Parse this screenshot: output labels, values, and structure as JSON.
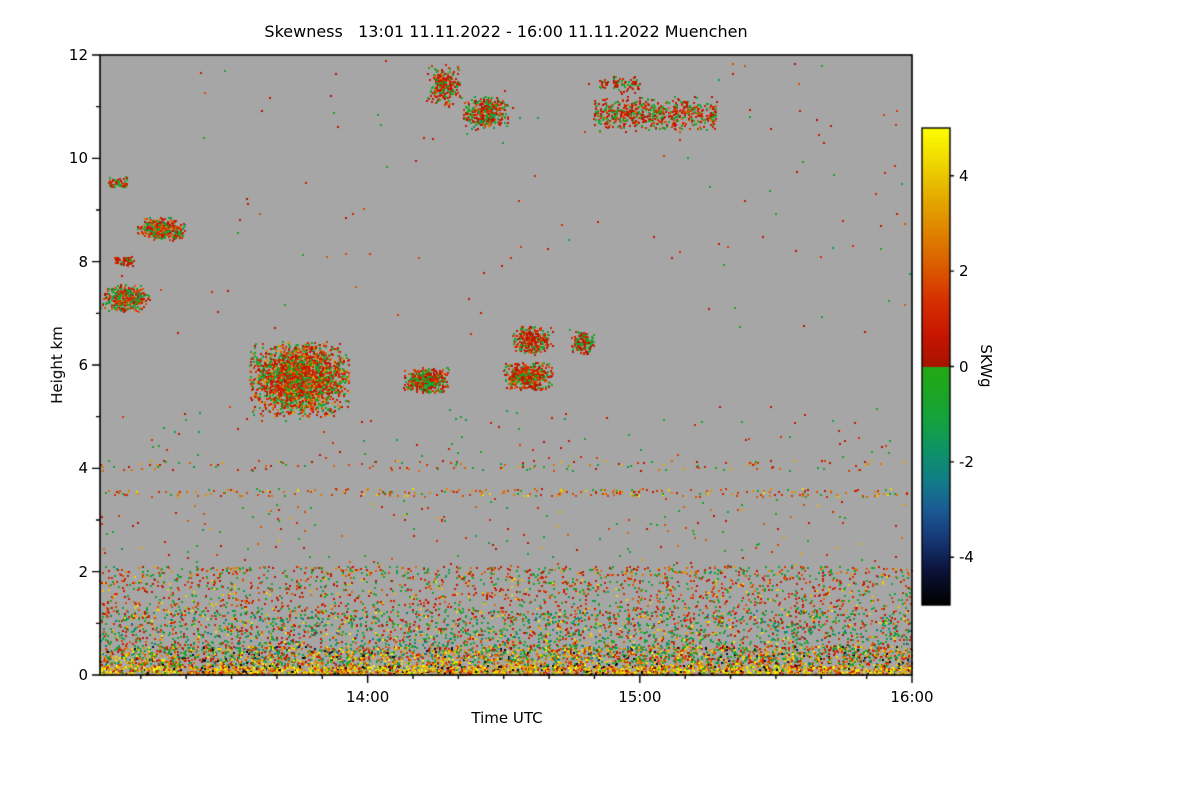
{
  "chart_data": {
    "type": "heatmap",
    "title": "Skewness   13:01 11.11.2022 - 16:00 11.11.2022 Muenchen",
    "xlabel": "Time UTC",
    "ylabel": "Height km",
    "x_start_label": "13:01",
    "x_end_label": "16:00",
    "x_range_minutes": [
      0,
      179
    ],
    "x_ticks": [
      {
        "minute": 59,
        "label": "14:00"
      },
      {
        "minute": 119,
        "label": "15:00"
      },
      {
        "minute": 179,
        "label": "16:00"
      }
    ],
    "ylim": [
      0,
      12
    ],
    "y_ticks": [
      {
        "value": 0,
        "label": "0"
      },
      {
        "value": 2,
        "label": "2"
      },
      {
        "value": 4,
        "label": "4"
      },
      {
        "value": 6,
        "label": "6"
      },
      {
        "value": 8,
        "label": "8"
      },
      {
        "value": 10,
        "label": "10"
      },
      {
        "value": 12,
        "label": "12"
      }
    ],
    "background_color": "#a6a6a6",
    "colorbar": {
      "label": "SKWg",
      "range": [
        -5,
        5
      ],
      "ticks": [
        {
          "value": 4,
          "label": "4"
        },
        {
          "value": 2,
          "label": "2"
        },
        {
          "value": 0,
          "label": "0"
        },
        {
          "value": -2,
          "label": "-2"
        },
        {
          "value": -4,
          "label": "-4"
        }
      ]
    },
    "colormap": {
      "negative": [
        [
          -5,
          "#000000"
        ],
        [
          -4.3,
          "#0b1238"
        ],
        [
          -3.6,
          "#163a78"
        ],
        [
          -3.0,
          "#1b5a96"
        ],
        [
          -2.4,
          "#117d87"
        ],
        [
          -1.8,
          "#0d9268"
        ],
        [
          -1.1,
          "#15a33c"
        ],
        [
          -0.4,
          "#1ea61f"
        ],
        [
          0,
          "#23a816"
        ]
      ],
      "positive": [
        [
          0,
          "#a81200"
        ],
        [
          0.7,
          "#c81600"
        ],
        [
          1.4,
          "#d63000"
        ],
        [
          2.1,
          "#db5c00"
        ],
        [
          2.8,
          "#de8200"
        ],
        [
          3.5,
          "#e3a800"
        ],
        [
          4.2,
          "#edd200"
        ],
        [
          5,
          "#fdff00"
        ]
      ]
    },
    "features": [
      {
        "name": "surface-band",
        "shape": "band",
        "t": [
          0,
          179
        ],
        "h": [
          0.0,
          0.18
        ],
        "n": 2300,
        "palette": [
          4.6,
          4.0,
          3.4,
          2.8,
          5.0,
          2.2,
          1.6,
          1.0,
          -0.8,
          -4.8,
          3.8,
          4.4,
          0.6,
          4.2
        ]
      },
      {
        "name": "bl-dense",
        "shape": "band",
        "t": [
          0,
          179
        ],
        "h": [
          0.18,
          0.55
        ],
        "n": 2700,
        "palette": [
          3.8,
          4.6,
          2.6,
          1.8,
          1.2,
          0.8,
          -0.8,
          -1.4,
          -2.2,
          -4.6,
          0.4,
          -0.4,
          3.0,
          2.0,
          -1.0,
          4.2
        ]
      },
      {
        "name": "bl-mid",
        "shape": "band",
        "t": [
          0,
          179
        ],
        "h": [
          0.55,
          1.25
        ],
        "n": 2100,
        "palette": [
          -0.8,
          -1.2,
          -1.8,
          -0.5,
          0.8,
          1.4,
          2.0,
          3.6,
          4.4,
          -2.4,
          0.5,
          -1.5,
          1.0,
          -0.9
        ]
      },
      {
        "name": "bl-upper",
        "shape": "band",
        "t": [
          0,
          179
        ],
        "h": [
          1.25,
          1.9
        ],
        "n": 1100,
        "palette": [
          -0.8,
          1.0,
          1.6,
          -1.3,
          0.6,
          2.2,
          4.0,
          -0.5,
          0.9,
          1.4
        ]
      },
      {
        "name": "bl-top-line",
        "shape": "band",
        "t": [
          0,
          179
        ],
        "h": [
          1.9,
          2.1
        ],
        "n": 460,
        "palette": [
          1.4,
          -1.0,
          0.8,
          1.9,
          -0.7,
          2.4,
          -1.4,
          0.6,
          3.2
        ]
      },
      {
        "name": "layer-3p5km",
        "shape": "band",
        "t": [
          0,
          179
        ],
        "h": [
          3.45,
          3.6
        ],
        "n": 250,
        "palette": [
          1.2,
          2.0,
          3.0,
          4.2,
          0.8,
          1.6,
          -0.6,
          2.6
        ]
      },
      {
        "name": "layer-4km",
        "shape": "band",
        "t": [
          0,
          179
        ],
        "h": [
          3.95,
          4.15
        ],
        "n": 150,
        "palette": [
          0.9,
          -0.7,
          1.6,
          2.4,
          0.5,
          -1.1,
          3.5
        ]
      },
      {
        "name": "noise-low",
        "shape": "band",
        "t": [
          0,
          179
        ],
        "h": [
          2.1,
          3.4
        ],
        "n": 180,
        "palette": [
          0.8,
          -0.8,
          1.5,
          -1.2,
          2.2,
          0.5,
          3.5,
          -0.5
        ]
      },
      {
        "name": "noise-mid",
        "shape": "band",
        "t": [
          0,
          179
        ],
        "h": [
          4.2,
          5.2
        ],
        "n": 90,
        "palette": [
          0.8,
          -0.8,
          1.5,
          -1.2,
          0.5
        ]
      },
      {
        "name": "noise-upper",
        "shape": "band",
        "t": [
          0,
          179
        ],
        "h": [
          6.6,
          11.9
        ],
        "n": 130,
        "palette": [
          0.6,
          -0.6,
          1.2,
          -1.0,
          0.4,
          1.8
        ]
      },
      {
        "name": "cumulus-large",
        "shape": "blob",
        "t": [
          33,
          55
        ],
        "h": [
          5.0,
          6.45
        ],
        "n": 2600,
        "palette": [
          0.9,
          1.3,
          0.6,
          1.8,
          -0.6,
          -0.9,
          0.4,
          -0.4,
          2.3,
          1.1,
          -1.2,
          0.7,
          3.0
        ]
      },
      {
        "name": "cumulus-b",
        "shape": "blob",
        "t": [
          67,
          77
        ],
        "h": [
          5.45,
          5.95
        ],
        "n": 520,
        "palette": [
          0.9,
          1.3,
          0.6,
          -0.6,
          -0.9,
          0.4,
          1.8,
          -0.4,
          1.1
        ]
      },
      {
        "name": "cumulus-c",
        "shape": "blob",
        "t": [
          89,
          100
        ],
        "h": [
          5.5,
          6.05
        ],
        "n": 560,
        "palette": [
          0.9,
          1.3,
          0.6,
          -0.6,
          -0.9,
          0.4,
          1.8,
          -0.4,
          2.3,
          1.1
        ]
      },
      {
        "name": "cumulus-c2",
        "shape": "blob",
        "t": [
          91,
          100
        ],
        "h": [
          6.2,
          6.75
        ],
        "n": 330,
        "palette": [
          0.8,
          1.2,
          -0.6,
          0.5,
          -0.9,
          1.6,
          0.4
        ]
      },
      {
        "name": "patch-6p3",
        "shape": "blob",
        "t": [
          104,
          109
        ],
        "h": [
          6.2,
          6.65
        ],
        "n": 160,
        "palette": [
          0.8,
          -0.6,
          1.2,
          0.5,
          -0.9
        ]
      },
      {
        "name": "patch-8p6",
        "shape": "blob",
        "t": [
          8,
          19
        ],
        "h": [
          8.4,
          8.85
        ],
        "n": 430,
        "palette": [
          1.5,
          1.0,
          0.8,
          -0.6,
          -1.0,
          2.0,
          0.5,
          -1.4,
          2.5
        ]
      },
      {
        "name": "patch-8p0",
        "shape": "blob",
        "t": [
          3,
          8
        ],
        "h": [
          7.9,
          8.1
        ],
        "n": 60,
        "palette": [
          0.8,
          -0.6,
          1.2,
          0.5
        ]
      },
      {
        "name": "patch-7p2",
        "shape": "blob",
        "t": [
          0.5,
          11
        ],
        "h": [
          7.0,
          7.55
        ],
        "n": 430,
        "palette": [
          1.2,
          0.8,
          -0.6,
          -1.0,
          1.8,
          0.5,
          -1.4,
          2.2
        ]
      },
      {
        "name": "patch-9p5",
        "shape": "streak",
        "t": [
          2,
          6
        ],
        "h": [
          9.4,
          9.65
        ],
        "n": 55,
        "palette": [
          0.8,
          -0.6,
          1.4,
          0.5
        ]
      },
      {
        "name": "cirrus-a",
        "shape": "blob",
        "t": [
          72,
          80
        ],
        "h": [
          11.0,
          11.8
        ],
        "n": 300,
        "palette": [
          0.6,
          1.0,
          -0.6,
          -1.0,
          1.5,
          0.4,
          -0.4,
          2.0,
          0.8
        ]
      },
      {
        "name": "cirrus-b",
        "shape": "blob",
        "t": [
          80,
          90
        ],
        "h": [
          10.55,
          11.2
        ],
        "n": 400,
        "palette": [
          0.6,
          1.0,
          -0.6,
          -1.0,
          1.5,
          0.4,
          -0.4,
          2.0,
          -1.5,
          0.8
        ]
      },
      {
        "name": "cirrus-c",
        "shape": "streak",
        "t": [
          109,
          136
        ],
        "h": [
          10.5,
          11.2
        ],
        "n": 650,
        "palette": [
          0.6,
          1.0,
          -0.6,
          -1.0,
          1.5,
          0.4,
          2.0,
          0.8,
          -0.4
        ]
      },
      {
        "name": "cirrus-d",
        "shape": "streak",
        "t": [
          110,
          119
        ],
        "h": [
          11.25,
          11.6
        ],
        "n": 85,
        "palette": [
          0.6,
          -0.6,
          1.0,
          0.4
        ]
      }
    ]
  }
}
